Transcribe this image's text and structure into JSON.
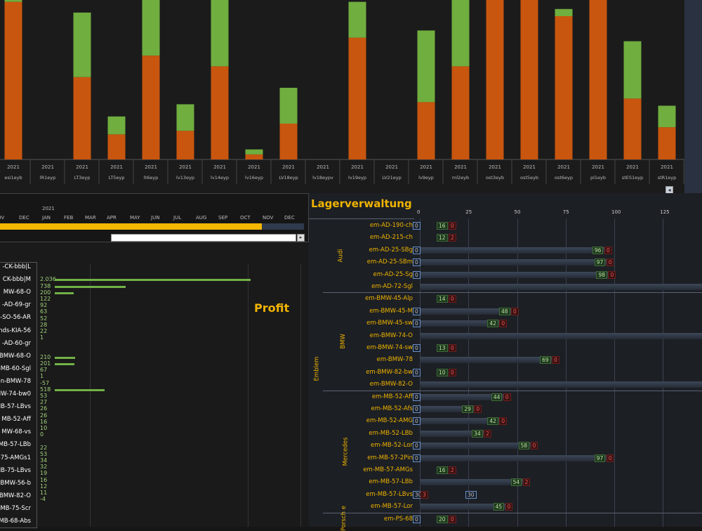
{
  "top_chart": {
    "categories": [
      "esi1eyb",
      "lR1eyp",
      "LT3eyp",
      "LT5eyp",
      "lt6eyp",
      "lv13eyp",
      "lv14eyp",
      "lv16eyp",
      "LV18eyp",
      "lv18eypv",
      "lv19eyp",
      "LV21eyp",
      "lv9eyp",
      "ml2eyb",
      "ost3eyb",
      "ost5eyb",
      "ost6eyp",
      "pl1eyb",
      "stES1eyp",
      "stR1eyp"
    ],
    "year": "2021",
    "orange": [
      22,
      0,
      11.5,
      3.5,
      14.5,
      4,
      13,
      0.7,
      5,
      0,
      17,
      0,
      8,
      13,
      30,
      30,
      20,
      30,
      8.5,
      4.5
    ],
    "green": [
      10,
      0,
      9,
      2.5,
      11.5,
      3.7,
      12,
      0.7,
      5,
      0,
      5,
      0,
      10,
      13,
      0,
      0,
      1,
      0,
      8,
      3
    ],
    "colors": {
      "orange": "#c8560f",
      "green": "#6fae3f"
    }
  },
  "timeline": {
    "year": "2021",
    "months": [
      "OV",
      "DEC",
      "JAN",
      "FEB",
      "MAR",
      "APR",
      "MAY",
      "JUN",
      "JUL",
      "AUG",
      "SEP",
      "OCT",
      "NOV",
      "DEC"
    ]
  },
  "profit": {
    "title": "Profit",
    "rows": [
      {
        "label": "-CK-bbb|L",
        "value": "",
        "bar": 0
      },
      {
        "label": "CK-bbb|M",
        "value": "",
        "bar": 0
      },
      {
        "label": "MW-68-O",
        "value": "2.036",
        "bar": 2036
      },
      {
        "label": "",
        "value": "738",
        "bar": 738
      },
      {
        "label": "-AD-69-gr",
        "value": "200",
        "bar": 200
      },
      {
        "label": "",
        "value": "122",
        "bar": 0
      },
      {
        "label": "-SO-56-AR",
        "value": "92",
        "bar": 0
      },
      {
        "label": "",
        "value": "63",
        "bar": 0
      },
      {
        "label": "nds-KIA-56",
        "value": "52",
        "bar": 0
      },
      {
        "label": "",
        "value": "28",
        "bar": 0
      },
      {
        "label": "-AD-60-gr",
        "value": "22",
        "bar": 0
      },
      {
        "label": "",
        "value": "1",
        "bar": 0
      },
      {
        "label": "-BMW-68-O",
        "value": "",
        "bar": 0
      },
      {
        "label": "",
        "value": "",
        "bar": 0
      },
      {
        "label": "-MB-60-Sgl",
        "value": "210",
        "bar": 210
      },
      {
        "label": "",
        "value": "201",
        "bar": 201
      },
      {
        "label": "n-BMW-78",
        "value": "67",
        "bar": 0
      },
      {
        "label": "",
        "value": "1",
        "bar": 0
      },
      {
        "label": "MW-74-bw0",
        "value": "-57",
        "bar": 0
      },
      {
        "label": "MB-57-LBvs",
        "value": "518",
        "bar": 518
      },
      {
        "label": "",
        "value": "53",
        "bar": 0
      },
      {
        "label": "MB-52-Aff",
        "value": "27",
        "bar": 0
      },
      {
        "label": "",
        "value": "26",
        "bar": 0
      },
      {
        "label": "MW-68-vs",
        "value": "26",
        "bar": 0
      },
      {
        "label": "",
        "value": "16",
        "bar": 0
      },
      {
        "label": "MB-57-LBb",
        "value": "10",
        "bar": 0
      },
      {
        "label": "",
        "value": "0",
        "bar": 0
      },
      {
        "label": "-75-AMGs1",
        "value": "",
        "bar": 0
      },
      {
        "label": "",
        "value": "22",
        "bar": 0
      },
      {
        "label": "MB-75-LBvs",
        "value": "53",
        "bar": 0
      },
      {
        "label": "",
        "value": "34",
        "bar": 0
      },
      {
        "label": "BMW-56-b",
        "value": "32",
        "bar": 0
      },
      {
        "label": "",
        "value": "19",
        "bar": 0
      },
      {
        "label": "BMW-82-O",
        "value": "16",
        "bar": 0
      },
      {
        "label": "",
        "value": "12",
        "bar": 0
      },
      {
        "label": "MB-75-Scr",
        "value": "11",
        "bar": 0
      },
      {
        "label": "",
        "value": "-4",
        "bar": 0
      },
      {
        "label": "MB-68-Abs",
        "value": "",
        "bar": 0
      }
    ]
  },
  "lager": {
    "title": "Lagerverwaltung",
    "axis_ticks": [
      "0",
      "25",
      "50",
      "75",
      "100",
      "125"
    ],
    "group_outer": "Emblem",
    "groups": [
      {
        "name": "Audi",
        "rows": [
          {
            "label": "em-AD-190-ch",
            "bar": 0,
            "g": "16",
            "r": "0",
            "b": "0"
          },
          {
            "label": "em-AD-215-ch",
            "bar": 0,
            "g": "12",
            "r": "2",
            "b": ""
          },
          {
            "label": "em-AD-25-SBg",
            "bar": 96,
            "g": "96",
            "r": "0",
            "b": "0"
          },
          {
            "label": "em-AD-25-SBm",
            "bar": 97,
            "g": "97",
            "r": "0",
            "b": "0"
          },
          {
            "label": "em-AD-25-Sg",
            "bar": 98,
            "g": "98",
            "r": "0",
            "b": "0"
          },
          {
            "label": "em-AD-72-Sgl",
            "bar": 150,
            "g": "",
            "r": "",
            "b": ""
          }
        ]
      },
      {
        "name": "BMW",
        "rows": [
          {
            "label": "em-BMW-45-Alp",
            "bar": 0,
            "g": "14",
            "r": "0",
            "b": ""
          },
          {
            "label": "em-BMW-45-M",
            "bar": 48,
            "g": "48",
            "r": "0",
            "b": "0"
          },
          {
            "label": "em-BMW-45-sw",
            "bar": 42,
            "g": "42",
            "r": "0",
            "b": "0"
          },
          {
            "label": "em-BMW-74-O",
            "bar": 150,
            "g": "",
            "r": "",
            "b": ""
          },
          {
            "label": "em-BMW-74-sw",
            "bar": 0,
            "g": "13",
            "r": "0",
            "b": "0"
          },
          {
            "label": "em-BMW-78",
            "bar": 69,
            "g": "69",
            "r": "0",
            "b": ""
          },
          {
            "label": "em-BMW-82-bw",
            "bar": 0,
            "g": "10",
            "r": "0",
            "b": "0"
          },
          {
            "label": "em-BMW-82-O",
            "bar": 150,
            "g": "",
            "r": "",
            "b": ""
          }
        ]
      },
      {
        "name": "Mercedes",
        "rows": [
          {
            "label": "em-MB-52-Aff",
            "bar": 44,
            "g": "44",
            "r": "0",
            "b": "0"
          },
          {
            "label": "em-MB-52-Afs",
            "bar": 29,
            "g": "29",
            "r": "0",
            "b": "0"
          },
          {
            "label": "em-MB-52-AMG",
            "bar": 42,
            "g": "42",
            "r": "0",
            "b": "0"
          },
          {
            "label": "em-MB-52-LBb",
            "bar": 34,
            "g": "34",
            "r": "2",
            "b": ""
          },
          {
            "label": "em-MB-52-Lor",
            "bar": 58,
            "g": "58",
            "r": "0",
            "b": "0"
          },
          {
            "label": "em-MB-57-2Pin",
            "bar": 97,
            "g": "97",
            "r": "0",
            "b": "0"
          },
          {
            "label": "em-MB-57-AMGs",
            "bar": 0,
            "g": "16",
            "r": "2",
            "b": ""
          },
          {
            "label": "em-MB-57-LBb",
            "bar": 54,
            "g": "54",
            "r": "2",
            "b": ""
          },
          {
            "label": "em-MB-57-LBvs",
            "bar": 0,
            "g": "",
            "r": "3",
            "b": "30"
          },
          {
            "label": "em-MB-57-Lor",
            "bar": 45,
            "g": "45",
            "r": "0",
            "b": ""
          }
        ]
      },
      {
        "name": "Porsch e",
        "rows": [
          {
            "label": "em-PS-68",
            "bar": 0,
            "g": "20",
            "r": "0",
            "b": "0"
          }
        ]
      }
    ]
  }
}
